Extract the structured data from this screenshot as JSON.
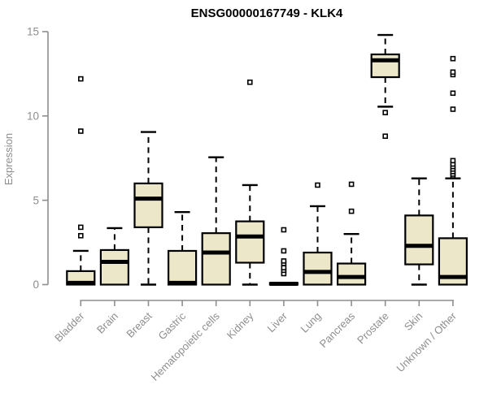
{
  "page": {
    "background": "#FFFFFF"
  },
  "chart_data": {
    "type": "boxplot",
    "title": "ENSG00000167749 - KLK4",
    "xlabel": "",
    "ylabel": "Expression",
    "ylim": [
      0,
      15
    ],
    "yticks": [
      0,
      5,
      10,
      15
    ],
    "grid": false,
    "legend_position": "none",
    "colors": {
      "box_fill": "#EDE7CA",
      "box_border": "#000000",
      "median": "#000000",
      "outlier": "#000000",
      "axis": "#8E8E8E",
      "title": "#000000"
    },
    "categories": [
      "Bladder",
      "Brain",
      "Breast",
      "Gastric",
      "Hematopoietic cells",
      "Kidney",
      "Liver",
      "Lung",
      "Pancreas",
      "Prostate",
      "Skin",
      "Unknown / Other"
    ],
    "series": [
      {
        "name": "Bladder",
        "whisker_low": 0,
        "q1": 0,
        "median": 0.1,
        "q3": 0.8,
        "whisker_high": 2.0,
        "outliers": [
          2.9,
          3.4,
          9.1,
          12.2
        ]
      },
      {
        "name": "Brain",
        "whisker_low": 0,
        "q1": 0,
        "median": 1.35,
        "q3": 2.05,
        "whisker_high": 3.35,
        "outliers": []
      },
      {
        "name": "Breast",
        "whisker_low": 0,
        "q1": 3.4,
        "median": 5.1,
        "q3": 6.0,
        "whisker_high": 9.05,
        "outliers": []
      },
      {
        "name": "Gastric",
        "whisker_low": 0,
        "q1": 0,
        "median": 0.1,
        "q3": 2.0,
        "whisker_high": 4.3,
        "outliers": []
      },
      {
        "name": "Hematopoietic cells",
        "whisker_low": 0,
        "q1": 0,
        "median": 1.9,
        "q3": 3.05,
        "whisker_high": 7.55,
        "outliers": []
      },
      {
        "name": "Kidney",
        "whisker_low": 0,
        "q1": 1.3,
        "median": 2.85,
        "q3": 3.75,
        "whisker_high": 5.9,
        "outliers": [
          12.0
        ]
      },
      {
        "name": "Liver",
        "whisker_low": 0,
        "q1": 0,
        "median": 0.05,
        "q3": 0.1,
        "whisker_high": 0.1,
        "outliers": [
          0.65,
          0.85,
          1.0,
          1.25,
          1.4,
          2.0,
          3.25
        ]
      },
      {
        "name": "Lung",
        "whisker_low": 0,
        "q1": 0,
        "median": 0.75,
        "q3": 1.9,
        "whisker_high": 4.65,
        "outliers": [
          5.9
        ]
      },
      {
        "name": "Pancreas",
        "whisker_low": 0,
        "q1": 0,
        "median": 0.45,
        "q3": 1.25,
        "whisker_high": 3.0,
        "outliers": [
          4.35,
          5.95
        ]
      },
      {
        "name": "Prostate",
        "whisker_low": 10.55,
        "q1": 12.3,
        "median": 13.3,
        "q3": 13.65,
        "whisker_high": 14.8,
        "outliers": [
          8.8,
          10.2
        ]
      },
      {
        "name": "Skin",
        "whisker_low": 0,
        "q1": 1.2,
        "median": 2.3,
        "q3": 4.1,
        "whisker_high": 6.3,
        "outliers": []
      },
      {
        "name": "Unknown / Other",
        "whisker_low": 0,
        "q1": 0,
        "median": 0.45,
        "q3": 2.75,
        "whisker_high": 6.3,
        "outliers": [
          6.45,
          6.55,
          6.7,
          6.85,
          7.0,
          7.15,
          7.35,
          10.4,
          11.35,
          12.45,
          12.6,
          13.4
        ]
      }
    ]
  }
}
